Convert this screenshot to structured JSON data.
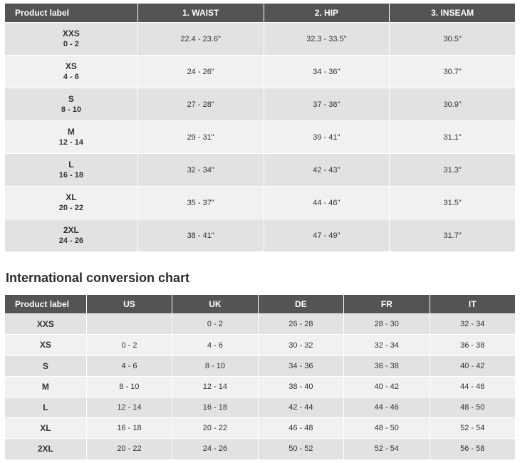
{
  "size_table": {
    "columns": [
      "Product label",
      "1. WAIST",
      "2. HIP",
      "3. INSEAM"
    ],
    "rows": [
      {
        "size": "XXS",
        "range": "0 - 2",
        "waist": "22.4 - 23.6\"",
        "hip": "32.3 - 33.5\"",
        "inseam": "30.5\""
      },
      {
        "size": "XS",
        "range": "4 - 6",
        "waist": "24 - 26\"",
        "hip": "34 - 36\"",
        "inseam": "30.7\""
      },
      {
        "size": "S",
        "range": "8 - 10",
        "waist": "27 - 28\"",
        "hip": "37 - 38\"",
        "inseam": "30.9\""
      },
      {
        "size": "M",
        "range": "12 - 14",
        "waist": "29 - 31\"",
        "hip": "39 - 41\"",
        "inseam": "31.1\""
      },
      {
        "size": "L",
        "range": "16 - 18",
        "waist": "32 - 34\"",
        "hip": "42 - 43\"",
        "inseam": "31.3\""
      },
      {
        "size": "XL",
        "range": "20 - 22",
        "waist": "35 - 37\"",
        "hip": "44 - 46\"",
        "inseam": "31.5\""
      },
      {
        "size": "2XL",
        "range": "24 - 26",
        "waist": "38 - 41\"",
        "hip": "47 - 49\"",
        "inseam": "31.7\""
      }
    ]
  },
  "intl_title": "International conversion chart",
  "intl_table": {
    "columns": [
      "Product label",
      "US",
      "UK",
      "DE",
      "FR",
      "IT"
    ],
    "rows": [
      {
        "size": "XXS",
        "us": "",
        "uk": "0 - 2",
        "de": "26 - 28",
        "fr": "28 - 30",
        "it": "32 - 34"
      },
      {
        "size": "XS",
        "us": "0 - 2",
        "uk": "4 - 6",
        "de": "30 - 32",
        "fr": "32 - 34",
        "it": "36 - 38"
      },
      {
        "size": "S",
        "us": "4 - 6",
        "uk": "8 - 10",
        "de": "34 - 36",
        "fr": "36 - 38",
        "it": "40 - 42"
      },
      {
        "size": "M",
        "us": "8 - 10",
        "uk": "12 - 14",
        "de": "38 - 40",
        "fr": "40 - 42",
        "it": "44 - 46"
      },
      {
        "size": "L",
        "us": "12 - 14",
        "uk": "16 - 18",
        "de": "42 - 44",
        "fr": "44 - 46",
        "it": "48 - 50"
      },
      {
        "size": "XL",
        "us": "16 - 18",
        "uk": "20 - 22",
        "de": "46 - 48",
        "fr": "48 - 50",
        "it": "52 - 54"
      },
      {
        "size": "2XL",
        "us": "20 - 22",
        "uk": "24 - 26",
        "de": "50 - 52",
        "fr": "52 - 54",
        "it": "56 - 58"
      }
    ]
  },
  "colors": {
    "header_bg": "#545454",
    "header_text": "#ffffff",
    "row_odd": "#e3e2e3",
    "row_even": "#f2f1f2",
    "text": "#333333",
    "title": "#2d2d2d"
  }
}
